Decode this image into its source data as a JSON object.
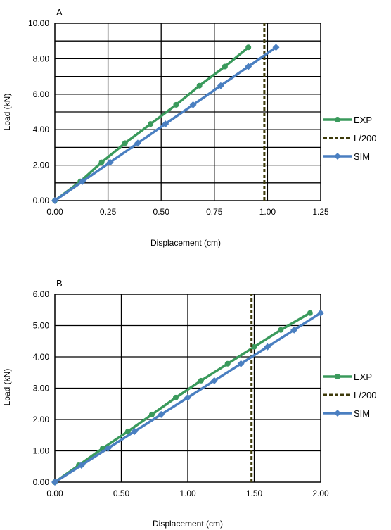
{
  "chart_data": [
    {
      "type": "line",
      "panel_label": "A",
      "xlabel": "Displacement (cm)",
      "ylabel": "Load  (kN)",
      "xlim": [
        0,
        1.25
      ],
      "ylim": [
        0,
        10
      ],
      "xticks": [
        "0.00",
        "0.25",
        "0.50",
        "0.75",
        "1.00",
        "1.25"
      ],
      "yticks": [
        "0.00",
        "2.00",
        "4.00",
        "6.00",
        "8.00",
        "10.00"
      ],
      "grid": true,
      "legend_position": "right",
      "series": [
        {
          "name": "EXP",
          "color": "#3a9a5c",
          "marker": "circle",
          "x": [
            0,
            0.12,
            0.22,
            0.33,
            0.45,
            0.57,
            0.68,
            0.8,
            0.91
          ],
          "y": [
            0,
            1.08,
            2.16,
            3.24,
            4.32,
            5.4,
            6.48,
            7.56,
            8.64
          ]
        },
        {
          "name": "L/200",
          "color": "#3d3a0a",
          "style": "dashed",
          "x": [
            0.985,
            0.985
          ],
          "y": [
            0,
            10
          ]
        },
        {
          "name": "SIM",
          "color": "#4a7fc1",
          "marker": "diamond",
          "x": [
            0,
            0.13,
            0.26,
            0.39,
            0.52,
            0.65,
            0.78,
            0.91,
            1.04
          ],
          "y": [
            0,
            1.08,
            2.16,
            3.24,
            4.32,
            5.4,
            6.48,
            7.56,
            8.64
          ]
        }
      ]
    },
    {
      "type": "line",
      "panel_label": "B",
      "xlabel": "Displacement (cm)",
      "ylabel": "Load  (kN)",
      "xlim": [
        0,
        2
      ],
      "ylim": [
        0,
        6
      ],
      "xticks": [
        "0.00",
        "0.50",
        "1.00",
        "1.50",
        "2.00"
      ],
      "yticks": [
        "0.00",
        "1.00",
        "2.00",
        "3.00",
        "4.00",
        "5.00",
        "6.00"
      ],
      "grid": true,
      "legend_position": "right",
      "series": [
        {
          "name": "EXP",
          "color": "#3a9a5c",
          "marker": "circle",
          "x": [
            0,
            0.18,
            0.36,
            0.55,
            0.73,
            0.91,
            1.1,
            1.3,
            1.5,
            1.7,
            1.92
          ],
          "y": [
            0,
            0.54,
            1.08,
            1.62,
            2.16,
            2.7,
            3.24,
            3.78,
            4.32,
            4.86,
            5.4
          ]
        },
        {
          "name": "L/200",
          "color": "#3d3a0a",
          "style": "dashed",
          "x": [
            1.48,
            1.48
          ],
          "y": [
            0,
            6
          ]
        },
        {
          "name": "SIM",
          "color": "#4a7fc1",
          "marker": "diamond",
          "x": [
            0,
            0.2,
            0.4,
            0.6,
            0.8,
            1.0,
            1.2,
            1.4,
            1.6,
            1.8,
            2.0
          ],
          "y": [
            0,
            0.54,
            1.08,
            1.62,
            2.16,
            2.7,
            3.24,
            3.78,
            4.32,
            4.86,
            5.4
          ]
        }
      ]
    }
  ]
}
